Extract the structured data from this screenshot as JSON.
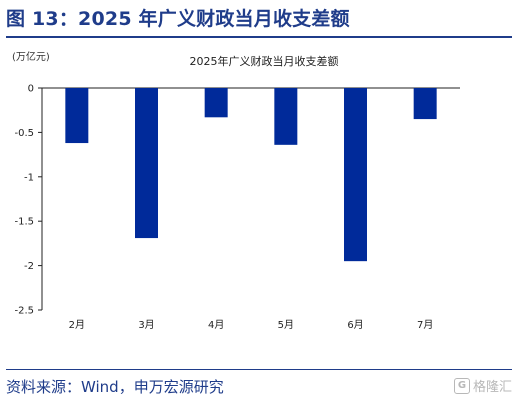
{
  "figure": {
    "title": "图 13：2025 年广义财政当月收支差额",
    "source": "资料来源：Wind，申万宏源研究",
    "watermark": "格隆汇",
    "watermark_logo": "G"
  },
  "chart_data": {
    "type": "bar",
    "title": "2025年广义财政当月收支差额",
    "unit": "(万亿元)",
    "categories": [
      "2月",
      "3月",
      "4月",
      "5月",
      "6月",
      "7月"
    ],
    "values": [
      -0.62,
      -1.69,
      -0.33,
      -0.64,
      -1.95,
      -0.35
    ],
    "ylim": [
      -2.5,
      0
    ],
    "yticks": [
      0,
      -0.5,
      -1,
      -1.5,
      -2,
      -2.5
    ],
    "ytick_labels": [
      "0",
      "-0.5",
      "-1",
      "-1.5",
      "-2",
      "-2.5"
    ],
    "xlabel": "",
    "ylabel": "",
    "grid": false,
    "legend": "none",
    "bar_color": "#002a9a"
  }
}
